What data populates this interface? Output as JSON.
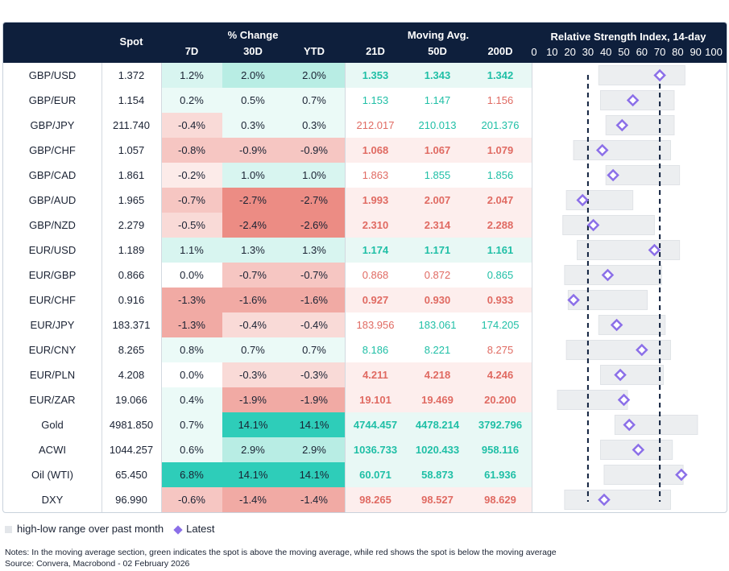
{
  "header": {
    "spot": "Spot",
    "pct_change": "% Change",
    "moving_avg": "Moving Avg.",
    "rsi_title": "Relative Strength Index, 14-day",
    "col_7d": "7D",
    "col_30d": "30D",
    "col_ytd": "YTD",
    "col_21d": "21D",
    "col_50d": "50D",
    "col_200d": "200D"
  },
  "colors": {
    "header_bg": "#0e1f3c",
    "green_text": "#1fbfa6",
    "red_text": "#e06a62",
    "range_bar": "#eceef0",
    "marker": "#8b6fe8"
  },
  "chart_data": {
    "type": "table",
    "rsi_axis": {
      "min": 0,
      "max": 100,
      "ticks": [
        "0",
        "10",
        "20",
        "30",
        "40",
        "50",
        "60",
        "70",
        "80",
        "90",
        "100"
      ],
      "reference_lines": [
        30,
        70
      ]
    },
    "rows": [
      {
        "name": "GBP/USD",
        "spot": "1.372",
        "d7": "1.2%",
        "d30": "2.0%",
        "ytd": "2.0%",
        "ma21": "1.353",
        "ma50": "1.343",
        "ma200": "1.342",
        "ma_dir": [
          "up",
          "up",
          "up"
        ],
        "ma_strong": true,
        "range": [
          36,
          84
        ],
        "rsi": 70
      },
      {
        "name": "GBP/EUR",
        "spot": "1.154",
        "d7": "0.2%",
        "d30": "0.5%",
        "ytd": "0.7%",
        "ma21": "1.153",
        "ma50": "1.147",
        "ma200": "1.156",
        "ma_dir": [
          "up",
          "up",
          "down"
        ],
        "ma_strong": false,
        "range": [
          37,
          78
        ],
        "rsi": 55
      },
      {
        "name": "GBP/JPY",
        "spot": "211.740",
        "d7": "-0.4%",
        "d30": "0.3%",
        "ytd": "0.3%",
        "ma21": "212.017",
        "ma50": "210.013",
        "ma200": "201.376",
        "ma_dir": [
          "down",
          "up",
          "up"
        ],
        "ma_strong": false,
        "range": [
          40,
          78
        ],
        "rsi": 49
      },
      {
        "name": "GBP/CHF",
        "spot": "1.057",
        "d7": "-0.8%",
        "d30": "-0.9%",
        "ytd": "-0.9%",
        "ma21": "1.068",
        "ma50": "1.067",
        "ma200": "1.079",
        "ma_dir": [
          "down",
          "down",
          "down"
        ],
        "ma_strong": true,
        "range": [
          22,
          76
        ],
        "rsi": 38
      },
      {
        "name": "GBP/CAD",
        "spot": "1.861",
        "d7": "-0.2%",
        "d30": "1.0%",
        "ytd": "1.0%",
        "ma21": "1.863",
        "ma50": "1.855",
        "ma200": "1.856",
        "ma_dir": [
          "down",
          "up",
          "up"
        ],
        "ma_strong": false,
        "range": [
          40,
          81
        ],
        "rsi": 44
      },
      {
        "name": "GBP/AUD",
        "spot": "1.965",
        "d7": "-0.7%",
        "d30": "-2.7%",
        "ytd": "-2.7%",
        "ma21": "1.993",
        "ma50": "2.007",
        "ma200": "2.047",
        "ma_dir": [
          "down",
          "down",
          "down"
        ],
        "ma_strong": true,
        "range": [
          18,
          55
        ],
        "rsi": 27
      },
      {
        "name": "GBP/NZD",
        "spot": "2.279",
        "d7": "-0.5%",
        "d30": "-2.4%",
        "ytd": "-2.6%",
        "ma21": "2.310",
        "ma50": "2.314",
        "ma200": "2.288",
        "ma_dir": [
          "down",
          "down",
          "down"
        ],
        "ma_strong": true,
        "range": [
          16,
          67
        ],
        "rsi": 33
      },
      {
        "name": "EUR/USD",
        "spot": "1.189",
        "d7": "1.1%",
        "d30": "1.3%",
        "ytd": "1.3%",
        "ma21": "1.174",
        "ma50": "1.171",
        "ma200": "1.161",
        "ma_dir": [
          "up",
          "up",
          "up"
        ],
        "ma_strong": true,
        "range": [
          24,
          81
        ],
        "rsi": 67
      },
      {
        "name": "EUR/GBP",
        "spot": "0.866",
        "d7": "0.0%",
        "d30": "-0.7%",
        "ytd": "-0.7%",
        "ma21": "0.868",
        "ma50": "0.872",
        "ma200": "0.865",
        "ma_dir": [
          "down",
          "down",
          "up"
        ],
        "ma_strong": false,
        "range": [
          17,
          71
        ],
        "rsi": 41
      },
      {
        "name": "EUR/CHF",
        "spot": "0.916",
        "d7": "-1.3%",
        "d30": "-1.6%",
        "ytd": "-1.6%",
        "ma21": "0.927",
        "ma50": "0.930",
        "ma200": "0.933",
        "ma_dir": [
          "down",
          "down",
          "down"
        ],
        "ma_strong": true,
        "range": [
          19,
          63
        ],
        "rsi": 22
      },
      {
        "name": "EUR/JPY",
        "spot": "183.371",
        "d7": "-1.3%",
        "d30": "-0.4%",
        "ytd": "-0.4%",
        "ma21": "183.956",
        "ma50": "183.061",
        "ma200": "174.205",
        "ma_dir": [
          "down",
          "up",
          "up"
        ],
        "ma_strong": false,
        "range": [
          36,
          73
        ],
        "rsi": 46
      },
      {
        "name": "EUR/CNY",
        "spot": "8.265",
        "d7": "0.8%",
        "d30": "0.7%",
        "ytd": "0.7%",
        "ma21": "8.186",
        "ma50": "8.221",
        "ma200": "8.275",
        "ma_dir": [
          "up",
          "up",
          "down"
        ],
        "ma_strong": false,
        "range": [
          18,
          76
        ],
        "rsi": 60
      },
      {
        "name": "EUR/PLN",
        "spot": "4.208",
        "d7": "0.0%",
        "d30": "-0.3%",
        "ytd": "-0.3%",
        "ma21": "4.211",
        "ma50": "4.218",
        "ma200": "4.246",
        "ma_dir": [
          "down",
          "down",
          "down"
        ],
        "ma_strong": true,
        "range": [
          37,
          72
        ],
        "rsi": 48
      },
      {
        "name": "EUR/ZAR",
        "spot": "19.066",
        "d7": "0.4%",
        "d30": "-1.9%",
        "ytd": "-1.9%",
        "ma21": "19.101",
        "ma50": "19.469",
        "ma200": "20.200",
        "ma_dir": [
          "down",
          "down",
          "down"
        ],
        "ma_strong": true,
        "range": [
          13,
          52
        ],
        "rsi": 50
      },
      {
        "name": "Gold",
        "spot": "4981.850",
        "d7": "0.7%",
        "d30": "14.1%",
        "ytd": "14.1%",
        "ma21": "4744.457",
        "ma50": "4478.214",
        "ma200": "3792.796",
        "ma_dir": [
          "up",
          "up",
          "up"
        ],
        "ma_strong": true,
        "range": [
          45,
          91
        ],
        "rsi": 53
      },
      {
        "name": "ACWI",
        "spot": "1044.257",
        "d7": "0.6%",
        "d30": "2.9%",
        "ytd": "2.9%",
        "ma21": "1036.733",
        "ma50": "1020.433",
        "ma200": "958.116",
        "ma_dir": [
          "up",
          "up",
          "up"
        ],
        "ma_strong": true,
        "range": [
          37,
          77
        ],
        "rsi": 58
      },
      {
        "name": "Oil (WTI)",
        "spot": "65.450",
        "d7": "6.8%",
        "d30": "14.1%",
        "ytd": "14.1%",
        "ma21": "60.071",
        "ma50": "58.873",
        "ma200": "61.936",
        "ma_dir": [
          "up",
          "up",
          "up"
        ],
        "ma_strong": true,
        "range": [
          39,
          83
        ],
        "rsi": 82
      },
      {
        "name": "DXY",
        "spot": "96.990",
        "d7": "-0.6%",
        "d30": "-1.4%",
        "ytd": "-1.4%",
        "ma21": "98.265",
        "ma50": "98.527",
        "ma200": "98.629",
        "ma_dir": [
          "down",
          "down",
          "down"
        ],
        "ma_strong": true,
        "range": [
          17,
          76
        ],
        "rsi": 39
      }
    ]
  },
  "legend": {
    "range_label": "high-low range over past month",
    "latest_label": "Latest"
  },
  "notes": {
    "line1": "Notes: In the moving average section, green indicates the spot is above the moving average, while red shows the spot is below the moving average",
    "line2": "Source: Convera, Macrobond - 02 February 2026"
  }
}
